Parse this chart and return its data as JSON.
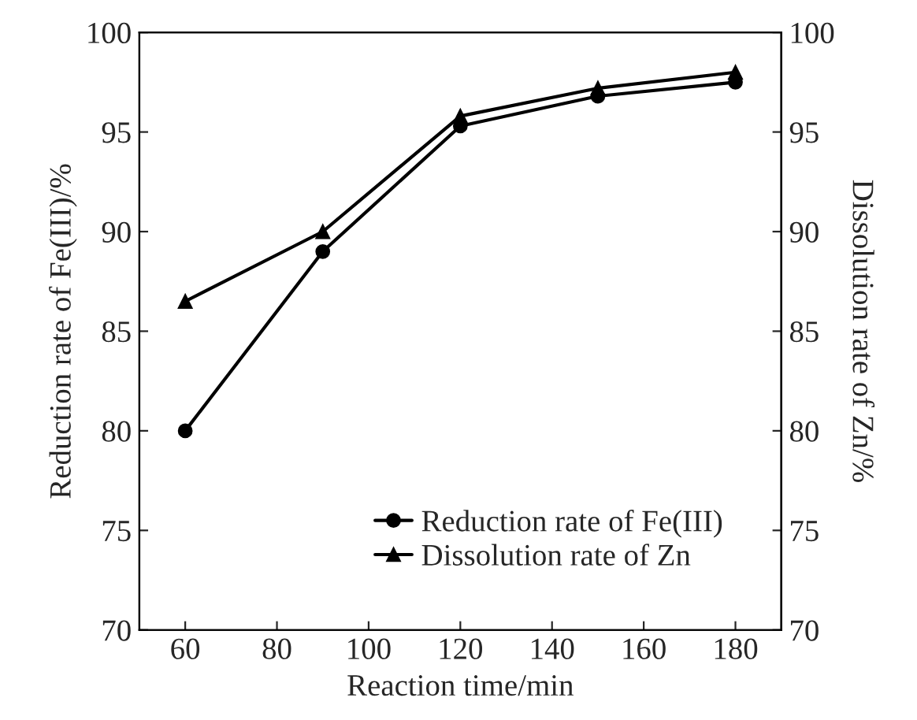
{
  "chart_data": {
    "type": "line",
    "xlabel": "Reaction time/min",
    "ylabel": "Reduction rate of Fe(III)/%",
    "y2label": "Dissolution rate of Zn/%",
    "x": [
      60,
      90,
      120,
      150,
      180
    ],
    "series": [
      {
        "name": "Reduction rate of Fe(III)",
        "color": "#000000",
        "marker": "circle",
        "values": [
          80,
          89,
          95.3,
          96.8,
          97.5
        ]
      },
      {
        "name": "Dissolution rate of Zn",
        "color": "#000000",
        "marker": "triangle",
        "axis": "y2",
        "values": [
          86.5,
          90,
          95.8,
          97.2,
          98
        ]
      }
    ],
    "xlim": [
      50,
      190
    ],
    "xticks": [
      60,
      80,
      100,
      120,
      140,
      160,
      180
    ],
    "ylim": [
      70,
      100
    ],
    "yticks": [
      70,
      75,
      80,
      85,
      90,
      95,
      100
    ],
    "y2lim": [
      70,
      100
    ],
    "y2ticks": [
      70,
      75,
      80,
      85,
      90,
      95,
      100
    ],
    "grid": false,
    "legend": "bottom right",
    "line_style": "solid"
  }
}
